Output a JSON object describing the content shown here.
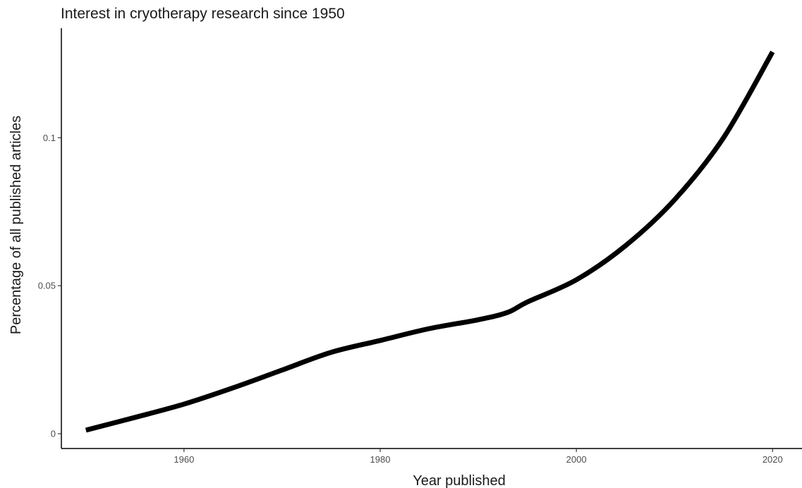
{
  "chart_data": {
    "type": "line",
    "title": "Interest in cryotherapy research since 1950",
    "xlabel": "Year published",
    "ylabel": "Percentage of all published articles",
    "xlim": [
      1947.5,
      2023
    ],
    "ylim": [
      -0.005,
      0.137
    ],
    "x_ticks": [
      1960,
      1980,
      2000,
      2020
    ],
    "x_tick_labels": [
      "1960",
      "1980",
      "2000",
      "2020"
    ],
    "y_ticks": [
      0,
      0.05,
      0.1
    ],
    "y_tick_labels": [
      "0",
      "0.05",
      "0.1"
    ],
    "grid": false,
    "legend": "none",
    "series": [
      {
        "color": "#000000",
        "x": [
          1950,
          1955,
          1960,
          1965,
          1970,
          1975,
          1980,
          1985,
          1990,
          1993,
          1995,
          2000,
          2005,
          2010,
          2015,
          2020
        ],
        "y": [
          0.0012,
          0.0055,
          0.01,
          0.0155,
          0.0215,
          0.0275,
          0.0315,
          0.0355,
          0.0385,
          0.041,
          0.0445,
          0.052,
          0.0635,
          0.079,
          0.1,
          0.129
        ]
      }
    ]
  }
}
